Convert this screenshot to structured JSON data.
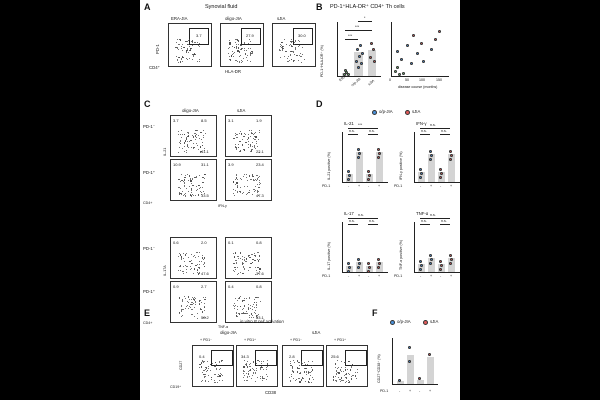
{
  "colors": {
    "background": "#000000",
    "figure_bg": "#ffffff",
    "blue": "#4a90d9",
    "red": "#e05a5a",
    "green": "#6fbf73",
    "bar": "#d4d4d4"
  },
  "panel_A": {
    "letter": "A",
    "title": "Synovial fluid",
    "groups": [
      "ERA-JIA",
      "oligo-JIA",
      "sJIA"
    ],
    "gate_values": [
      "3.7",
      "27.9",
      "30.0"
    ],
    "y_label": "PD-1",
    "x_label": "HLA-DR",
    "corner_label": "CD4⁺"
  },
  "panel_B": {
    "letter": "B",
    "title": "PD-1⁺HLA-DR⁺ CD4⁺ Th cells",
    "y_label": "PD-1⁺HLA-DR⁺ (%)",
    "x_categories": [
      "ERA",
      "o/p-JIA",
      "sJIA"
    ],
    "sig": [
      "***",
      "***",
      "*"
    ],
    "x2_label": "disease course (months)",
    "x2_ticks": [
      "0",
      "50",
      "100",
      "150"
    ]
  },
  "panel_C": {
    "letter": "C",
    "groups": [
      "oligo-JIA",
      "sJIA"
    ],
    "rows": [
      "PD-1⁻",
      "PD-1⁺"
    ],
    "top_ylabel": "IL-21",
    "top_xlabel": "IFN-γ",
    "bottom_ylabel": "IL-17A",
    "bottom_xlabel": "TNF-α",
    "corner_label": "CD4+",
    "quadrants": [
      [
        "3.7",
        "8.5",
        "41.1"
      ],
      [
        "3.1",
        "1.9",
        "22.1"
      ],
      [
        "10.9",
        "31.1",
        "33.5"
      ],
      [
        "3.9",
        "23.4",
        "47.3"
      ],
      [
        "0.6",
        "2.0",
        "47.6"
      ],
      [
        "0.1",
        "0.8",
        "37.6"
      ],
      [
        "0.9",
        "2.7",
        "58.2"
      ],
      [
        "0.4",
        "0.8",
        "63.1"
      ]
    ]
  },
  "panel_D": {
    "letter": "D",
    "legend": [
      "o/p-JIA",
      "sJIA"
    ],
    "subpanels": [
      {
        "title": "IL-21",
        "ylabel": "IL-21 positive (%)"
      },
      {
        "title": "IFN-γ",
        "ylabel": "IFN-γ positive (%)"
      },
      {
        "title": "IL-17",
        "ylabel": "IL-17 positive (%)"
      },
      {
        "title": "TNF-α",
        "ylabel": "TNF-α positive (%)"
      }
    ],
    "pd1_label": "PD-1",
    "pd1_signs": [
      "-",
      "+",
      "-",
      "+"
    ],
    "ns": "n.s.",
    "sig3": "***"
  },
  "panel_E": {
    "letter": "E",
    "title": "in vitro B cell activation",
    "groups": [
      "oligo-JIA",
      "sJIA"
    ],
    "conditions": [
      "+ PD1⁻",
      "+ PD1⁺",
      "+ PD1⁻",
      "+ PD1⁺"
    ],
    "gate_values": [
      "0.4",
      "34.3",
      "2.8",
      "25.6"
    ],
    "y_label": "CD27",
    "x_label": "CD38",
    "corner_label": "CD19⁺"
  },
  "panel_F": {
    "letter": "F",
    "legend": [
      "o/p-JIA",
      "sJIA"
    ],
    "y_label": "CD27⁺CD38⁺ (%)",
    "pd1_label": "PD-1",
    "pd1_signs": [
      "-",
      "+",
      "-",
      "+"
    ]
  }
}
